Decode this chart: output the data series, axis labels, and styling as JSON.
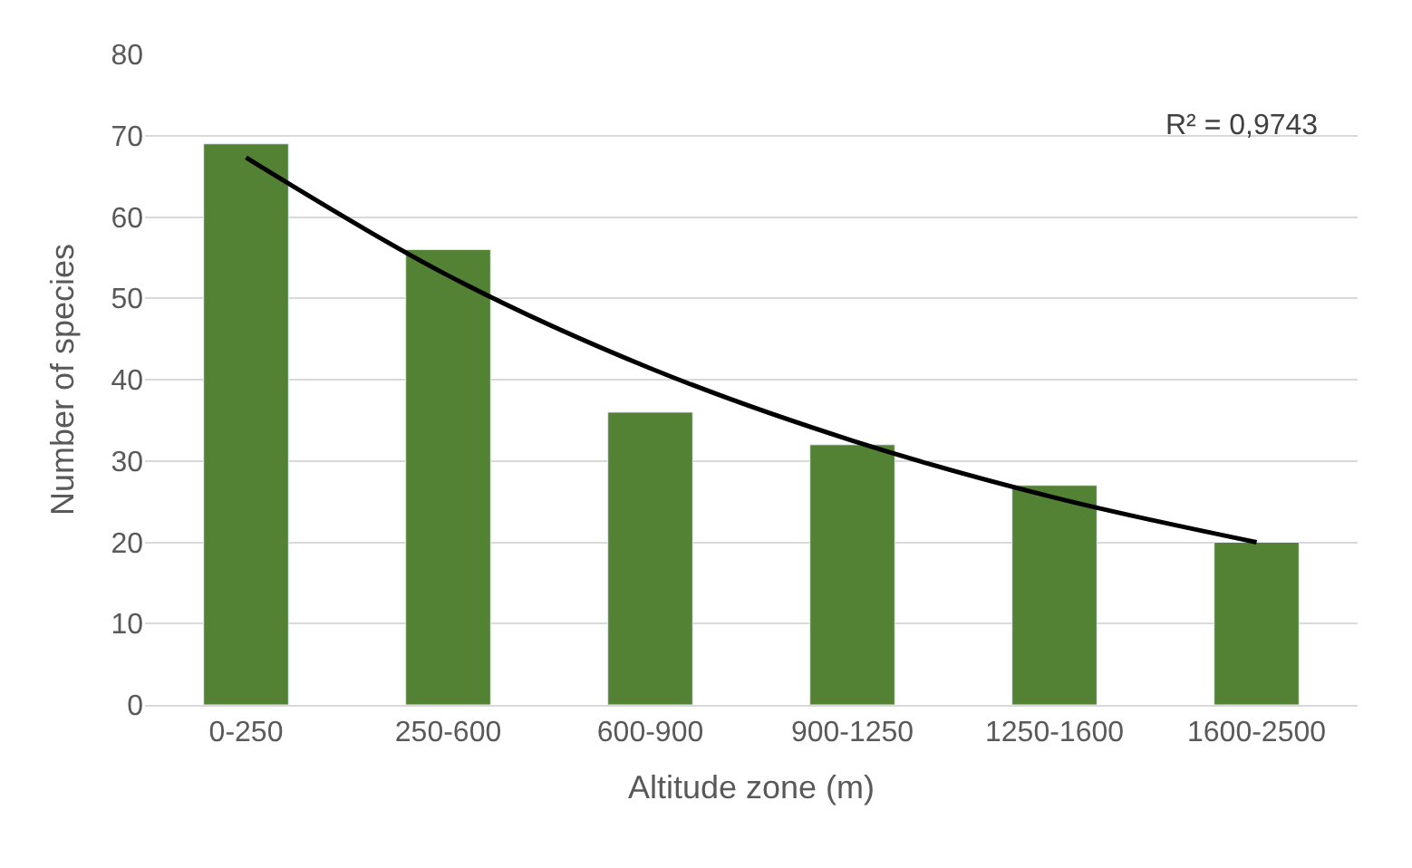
{
  "chart_data": {
    "type": "bar",
    "xlabel": "Altitude zone (m)",
    "ylabel": "Number of species",
    "categories": [
      "0-250",
      "250-600",
      "600-900",
      "900-1250",
      "1250-1600",
      "1600-2500"
    ],
    "series": [
      {
        "color": "#548235",
        "values": [
          69,
          56,
          36,
          32,
          27,
          20
        ]
      },
      {
        "type": "line",
        "color": "#000000",
        "values": [
          67.3,
          52.8,
          41.4,
          32.5,
          25.5,
          20.0
        ]
      }
    ],
    "ylim": [
      0,
      80
    ],
    "yticks": [
      0,
      10,
      20,
      30,
      40,
      50,
      60,
      70,
      80
    ],
    "grid": "y",
    "legend": false,
    "annotations": [
      "R² = 0,9743"
    ]
  }
}
